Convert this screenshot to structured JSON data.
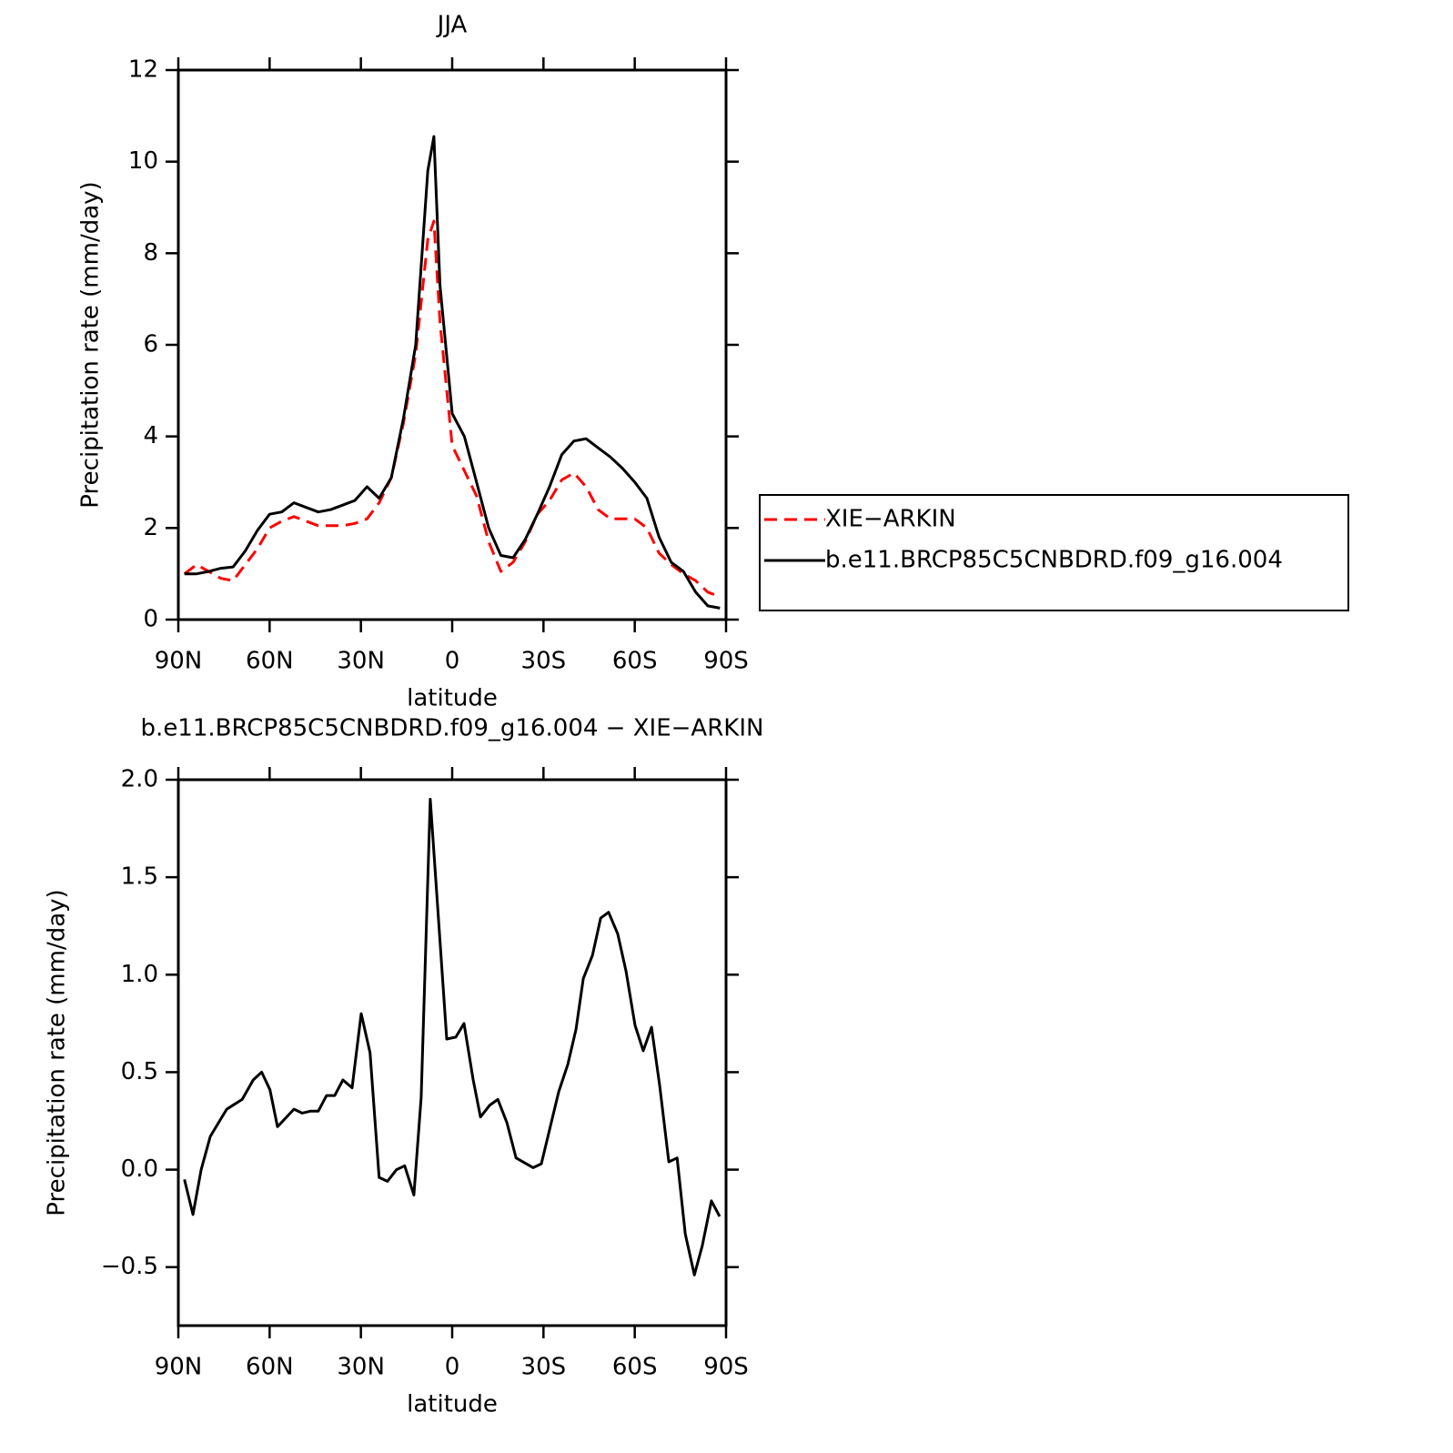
{
  "chart_data": [
    {
      "type": "line",
      "title": "JJA",
      "xlabel": "latitude",
      "ylabel": "Precipitation rate (mm/day)",
      "x": [
        88,
        84,
        80,
        76,
        72,
        68,
        64,
        60,
        56,
        52,
        48,
        44,
        40,
        36,
        32,
        28,
        24,
        20,
        16,
        12,
        8,
        6,
        4,
        0,
        -4,
        -8,
        -12,
        -16,
        -20,
        -24,
        -28,
        -32,
        -36,
        -40,
        -44,
        -48,
        -52,
        -56,
        -60,
        -64,
        -68,
        -72,
        -76,
        -80,
        -84,
        -88
      ],
      "series": [
        {
          "name": "XIE−ARKIN",
          "color": "#ff0000",
          "line_style": "dashed",
          "values": [
            1.0,
            1.2,
            1.05,
            0.9,
            0.85,
            1.2,
            1.55,
            2.0,
            2.15,
            2.25,
            2.15,
            2.05,
            2.05,
            2.05,
            2.1,
            2.2,
            2.55,
            3.1,
            4.3,
            5.8,
            8.3,
            8.7,
            6.5,
            3.8,
            3.25,
            2.7,
            1.7,
            1.05,
            1.25,
            1.7,
            2.3,
            2.6,
            3.05,
            3.2,
            2.9,
            2.4,
            2.2,
            2.2,
            2.2,
            2.0,
            1.45,
            1.2,
            1.0,
            0.85,
            0.6,
            0.5
          ]
        },
        {
          "name": "b.e11.BRCP85C5CNBDRD.f09_g16.004",
          "color": "#000000",
          "line_style": "solid",
          "values": [
            1.0,
            1.0,
            1.05,
            1.12,
            1.15,
            1.5,
            1.95,
            2.3,
            2.35,
            2.55,
            2.45,
            2.35,
            2.4,
            2.5,
            2.6,
            2.9,
            2.65,
            3.1,
            4.4,
            6.0,
            9.8,
            10.55,
            7.3,
            4.5,
            4.0,
            3.0,
            2.0,
            1.4,
            1.35,
            1.75,
            2.3,
            2.9,
            3.6,
            3.9,
            3.95,
            3.75,
            3.55,
            3.3,
            3.0,
            2.65,
            1.8,
            1.25,
            1.05,
            0.6,
            0.3,
            0.25
          ]
        }
      ],
      "xlim": [
        90,
        -90
      ],
      "xticks": [
        {
          "value": 90,
          "label": "90N"
        },
        {
          "value": 60,
          "label": "60N"
        },
        {
          "value": 30,
          "label": "30N"
        },
        0,
        {
          "value": -30,
          "label": "30S"
        },
        {
          "value": -60,
          "label": "60S"
        },
        {
          "value": -90,
          "label": "90S"
        }
      ],
      "ylim": [
        0,
        12
      ],
      "yticks": [
        0,
        2,
        4,
        6,
        8,
        10,
        12
      ],
      "legend": "right"
    },
    {
      "type": "line",
      "title": "b.e11.BRCP85C5CNBDRD.f09_g16.004 − XIE−ARKIN",
      "xlabel": "latitude",
      "ylabel": "Precipitation rate (mm/day)",
      "x": [
        88,
        85.2,
        82.5,
        79.5,
        76.8,
        74.1,
        69,
        65.4,
        62.6,
        59.9,
        57.4,
        52,
        49.3,
        46.6,
        44,
        41.3,
        38.6,
        35.9,
        32.9,
        29.9,
        27,
        24,
        21.3,
        18.3,
        15.6,
        12.6,
        10.2,
        7.2,
        1.8,
        -1.2,
        -3.9,
        -6.9,
        -9.3,
        -12.3,
        -15,
        -18,
        -21,
        -26.6,
        -29.3,
        -35,
        -38,
        -40.7,
        -43.1,
        -46.1,
        -48.8,
        -51.4,
        -54.4,
        -57.1,
        -60.1,
        -62.8,
        -65.5,
        -68.2,
        -71.2,
        -73.9,
        -76.6,
        -79.6,
        -82.2,
        -85.2,
        -87.9
      ],
      "values": [
        -0.05,
        -0.23,
        0.0,
        0.17,
        0.24,
        0.31,
        0.36,
        0.46,
        0.5,
        0.41,
        0.22,
        0.31,
        0.29,
        0.3,
        0.3,
        0.38,
        0.38,
        0.46,
        0.42,
        0.8,
        0.6,
        -0.04,
        -0.06,
        0.0,
        0.02,
        -0.13,
        0.37,
        1.9,
        0.67,
        0.68,
        0.75,
        0.46,
        0.27,
        0.33,
        0.36,
        0.24,
        0.06,
        0.01,
        0.03,
        0.4,
        0.54,
        0.72,
        0.98,
        1.1,
        1.29,
        1.32,
        1.21,
        1.02,
        0.74,
        0.61,
        0.73,
        0.43,
        0.04,
        0.06,
        -0.33,
        -0.54,
        -0.39,
        -0.16,
        -0.24
      ],
      "color": "#000000",
      "xlim": [
        90,
        -90
      ],
      "xticks": [
        {
          "value": 90,
          "label": "90N"
        },
        {
          "value": 60,
          "label": "60N"
        },
        {
          "value": 30,
          "label": "30N"
        },
        0,
        {
          "value": -30,
          "label": "30S"
        },
        {
          "value": -60,
          "label": "60S"
        },
        {
          "value": -90,
          "label": "90S"
        }
      ],
      "ylim": [
        -0.8,
        2.0
      ],
      "yticks": [
        {
          "value": -0.5,
          "label": "−0.5"
        },
        {
          "value": 0,
          "label": "0.0"
        },
        0.5,
        {
          "value": 1,
          "label": "1.0"
        },
        1.5,
        {
          "value": 2,
          "label": "2.0"
        }
      ]
    }
  ]
}
